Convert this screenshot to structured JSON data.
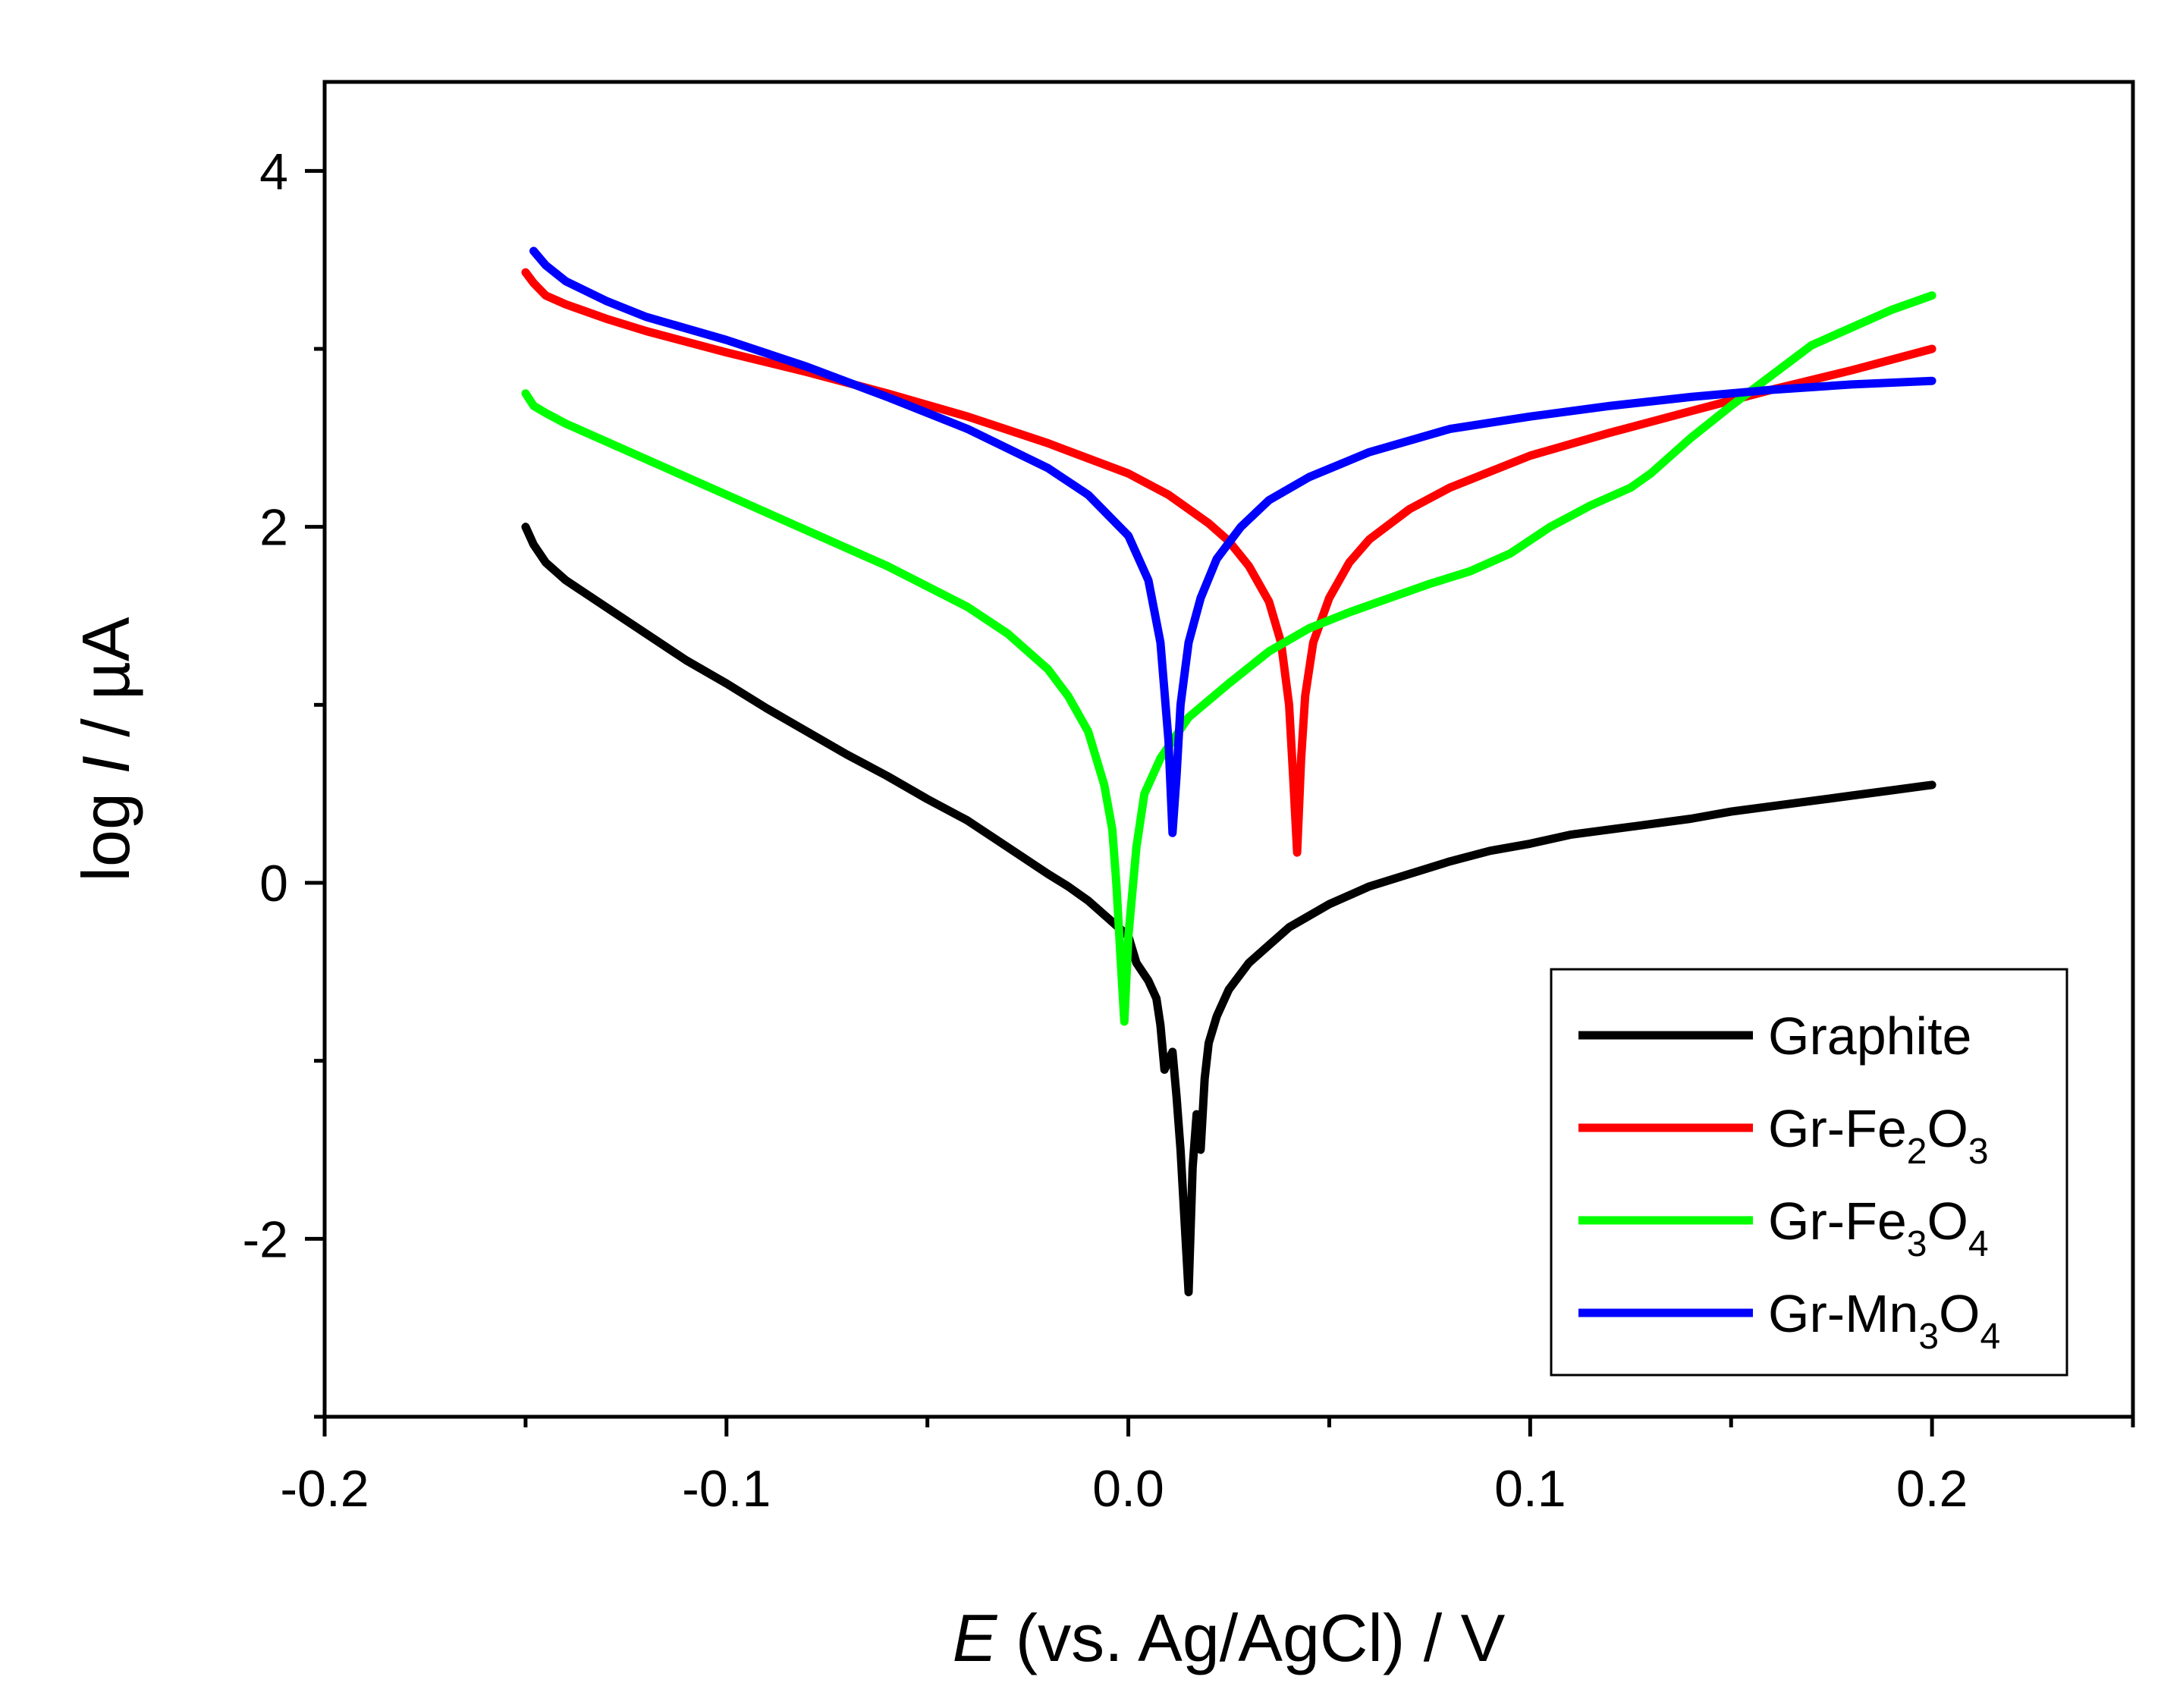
{
  "chart_data": {
    "type": "line",
    "title": "",
    "xlabel_var": "E",
    "xlabel_rest": " (vs. Ag/AgCl) / V",
    "ylabel_pre": "log ",
    "ylabel_var": "I",
    "ylabel_post": " / µA",
    "xlim": [
      -0.2,
      0.25
    ],
    "ylim": [
      -3.0,
      4.5
    ],
    "xticks": [
      {
        "value": -0.2,
        "label": "-0.2"
      },
      {
        "value": -0.1,
        "label": "-0.1"
      },
      {
        "value": 0.0,
        "label": "0.0"
      },
      {
        "value": 0.1,
        "label": "0.1"
      },
      {
        "value": 0.2,
        "label": "0.2"
      }
    ],
    "yticks": [
      {
        "value": -2,
        "label": "-2"
      },
      {
        "value": 0,
        "label": "0"
      },
      {
        "value": 2,
        "label": "2"
      },
      {
        "value": 4,
        "label": "4"
      }
    ],
    "grid": false,
    "legend_position": "bottom-right",
    "series": [
      {
        "name": "Graphite",
        "label_parts": [
          {
            "t": "Graphite"
          }
        ],
        "color": "#000000",
        "x": [
          -0.15,
          -0.148,
          -0.145,
          -0.14,
          -0.13,
          -0.12,
          -0.11,
          -0.1,
          -0.09,
          -0.08,
          -0.07,
          -0.06,
          -0.05,
          -0.04,
          -0.03,
          -0.02,
          -0.015,
          -0.01,
          -0.005,
          0.0,
          0.002,
          0.005,
          0.007,
          0.008,
          0.009,
          0.01,
          0.011,
          0.012,
          0.013,
          0.014,
          0.015,
          0.016,
          0.017,
          0.018,
          0.019,
          0.02,
          0.022,
          0.025,
          0.03,
          0.035,
          0.04,
          0.05,
          0.06,
          0.07,
          0.08,
          0.09,
          0.1,
          0.11,
          0.12,
          0.13,
          0.14,
          0.15,
          0.16,
          0.17,
          0.18,
          0.19,
          0.2
        ],
        "y": [
          2.0,
          1.9,
          1.8,
          1.7,
          1.55,
          1.4,
          1.25,
          1.12,
          0.98,
          0.85,
          0.72,
          0.6,
          0.47,
          0.35,
          0.2,
          0.05,
          -0.02,
          -0.1,
          -0.2,
          -0.3,
          -0.45,
          -0.55,
          -0.65,
          -0.8,
          -1.05,
          -1.0,
          -0.95,
          -1.2,
          -1.5,
          -1.9,
          -2.3,
          -1.6,
          -1.3,
          -1.5,
          -1.1,
          -0.9,
          -0.75,
          -0.6,
          -0.45,
          -0.35,
          -0.25,
          -0.12,
          -0.02,
          0.05,
          0.12,
          0.18,
          0.22,
          0.27,
          0.3,
          0.33,
          0.36,
          0.4,
          0.43,
          0.46,
          0.49,
          0.52,
          0.55
        ]
      },
      {
        "name": "Gr-Fe2O3",
        "label_parts": [
          {
            "t": "Gr-Fe"
          },
          {
            "t": "2",
            "sub": true
          },
          {
            "t": "O"
          },
          {
            "t": "3",
            "sub": true
          }
        ],
        "color": "#ff0000",
        "x": [
          -0.15,
          -0.148,
          -0.145,
          -0.14,
          -0.13,
          -0.12,
          -0.1,
          -0.08,
          -0.06,
          -0.04,
          -0.02,
          0.0,
          0.01,
          0.02,
          0.025,
          0.03,
          0.035,
          0.038,
          0.04,
          0.041,
          0.042,
          0.043,
          0.044,
          0.046,
          0.05,
          0.055,
          0.06,
          0.07,
          0.08,
          0.1,
          0.12,
          0.14,
          0.16,
          0.18,
          0.2
        ],
        "y": [
          3.43,
          3.37,
          3.3,
          3.25,
          3.17,
          3.1,
          2.98,
          2.87,
          2.75,
          2.62,
          2.47,
          2.3,
          2.18,
          2.02,
          1.92,
          1.78,
          1.58,
          1.35,
          1.0,
          0.6,
          0.17,
          0.7,
          1.05,
          1.35,
          1.6,
          1.8,
          1.93,
          2.1,
          2.22,
          2.4,
          2.53,
          2.65,
          2.77,
          2.88,
          3.0
        ]
      },
      {
        "name": "Gr-Fe3O4",
        "label_parts": [
          {
            "t": "Gr-Fe"
          },
          {
            "t": "3",
            "sub": true
          },
          {
            "t": "O"
          },
          {
            "t": "4",
            "sub": true
          }
        ],
        "color": "#00ff00",
        "x": [
          -0.15,
          -0.148,
          -0.145,
          -0.14,
          -0.13,
          -0.12,
          -0.1,
          -0.08,
          -0.06,
          -0.04,
          -0.03,
          -0.02,
          -0.015,
          -0.01,
          -0.006,
          -0.004,
          -0.003,
          -0.002,
          -0.001,
          0.0,
          0.002,
          0.004,
          0.008,
          0.015,
          0.025,
          0.035,
          0.045,
          0.055,
          0.065,
          0.075,
          0.085,
          0.095,
          0.105,
          0.115,
          0.125,
          0.13,
          0.14,
          0.15,
          0.16,
          0.17,
          0.18,
          0.19,
          0.2
        ],
        "y": [
          2.75,
          2.68,
          2.64,
          2.58,
          2.48,
          2.38,
          2.18,
          1.98,
          1.78,
          1.55,
          1.4,
          1.2,
          1.05,
          0.85,
          0.55,
          0.3,
          0.0,
          -0.4,
          -0.78,
          -0.3,
          0.2,
          0.5,
          0.7,
          0.93,
          1.12,
          1.3,
          1.43,
          1.52,
          1.6,
          1.68,
          1.75,
          1.85,
          2.0,
          2.12,
          2.22,
          2.3,
          2.5,
          2.68,
          2.85,
          3.02,
          3.12,
          3.22,
          3.3
        ]
      },
      {
        "name": "Gr-Mn3O4",
        "label_parts": [
          {
            "t": "Gr-Mn"
          },
          {
            "t": "3",
            "sub": true
          },
          {
            "t": "O"
          },
          {
            "t": "4",
            "sub": true
          }
        ],
        "color": "#0000ff",
        "x": [
          -0.148,
          -0.145,
          -0.14,
          -0.13,
          -0.12,
          -0.1,
          -0.08,
          -0.06,
          -0.04,
          -0.02,
          -0.01,
          0.0,
          0.005,
          0.008,
          0.01,
          0.011,
          0.012,
          0.013,
          0.015,
          0.018,
          0.022,
          0.028,
          0.035,
          0.045,
          0.06,
          0.08,
          0.1,
          0.12,
          0.14,
          0.16,
          0.18,
          0.2
        ],
        "y": [
          3.55,
          3.47,
          3.38,
          3.27,
          3.18,
          3.05,
          2.9,
          2.73,
          2.55,
          2.33,
          2.18,
          1.95,
          1.7,
          1.35,
          0.8,
          0.28,
          0.6,
          1.0,
          1.35,
          1.6,
          1.82,
          2.0,
          2.15,
          2.28,
          2.42,
          2.55,
          2.62,
          2.68,
          2.73,
          2.77,
          2.8,
          2.82
        ]
      }
    ]
  }
}
